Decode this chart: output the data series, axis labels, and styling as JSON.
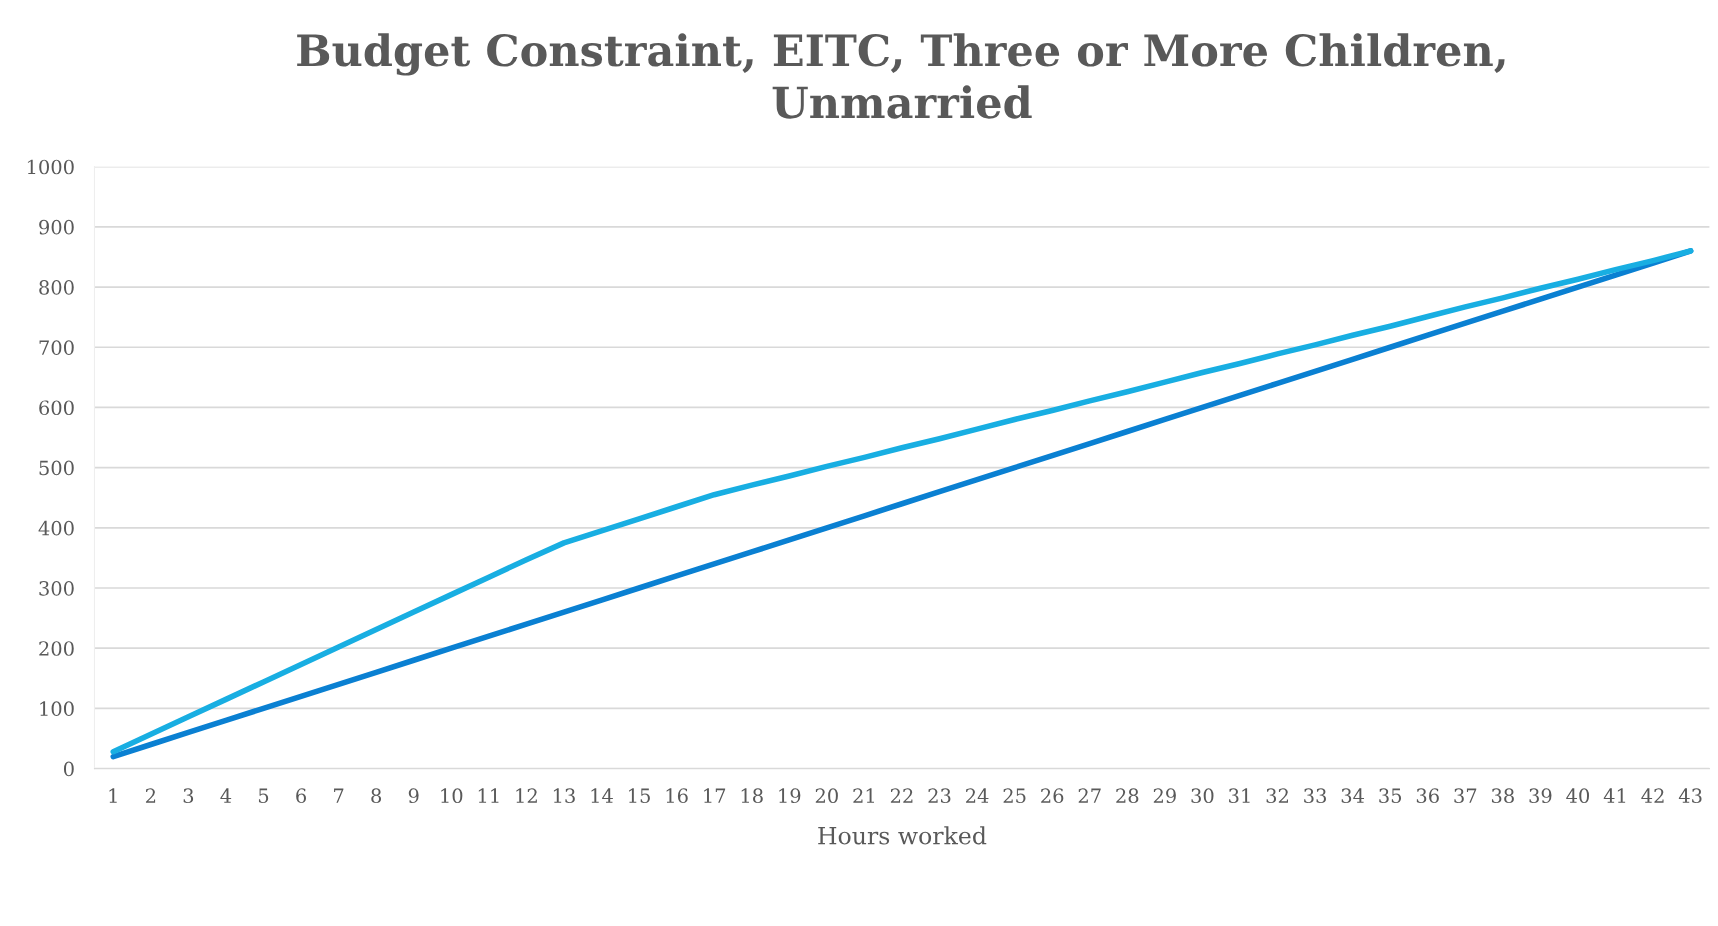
{
  "chart_data": {
    "type": "line",
    "title": "Budget Constraint, EITC, Three or More Children,\nUnmarried",
    "xlabel": "Hours worked",
    "categories": [
      "1",
      "2",
      "3",
      "4",
      "5",
      "6",
      "7",
      "8",
      "9",
      "10",
      "11",
      "12",
      "13",
      "14",
      "15",
      "16",
      "17",
      "18",
      "19",
      "20",
      "21",
      "22",
      "23",
      "24",
      "25",
      "26",
      "27",
      "28",
      "29",
      "30",
      "31",
      "32",
      "33",
      "34",
      "35",
      "36",
      "37",
      "38",
      "39",
      "40",
      "41",
      "42",
      "43"
    ],
    "series": [
      {
        "color": "#0a80d2",
        "values": [
          20,
          40,
          60,
          80,
          100,
          120,
          140,
          160,
          180,
          200,
          220,
          240,
          260,
          280,
          300,
          320,
          340,
          360,
          380,
          400,
          420,
          440,
          460,
          480,
          500,
          520,
          540,
          560,
          580,
          600,
          620,
          640,
          660,
          680,
          700,
          720,
          740,
          760,
          780,
          800,
          820,
          840,
          860
        ]
      },
      {
        "color": "#18aee2",
        "values": [
          28,
          57,
          86,
          115,
          144,
          173,
          202,
          231,
          260,
          289,
          318,
          347,
          375,
          395,
          415,
          435,
          455,
          471,
          486,
          502,
          517,
          533,
          548,
          564,
          580,
          595,
          611,
          626,
          642,
          658,
          673,
          689,
          704,
          720,
          735,
          751,
          767,
          782,
          798,
          813,
          829,
          844,
          860
        ]
      }
    ],
    "ylim": [
      0,
      1000
    ],
    "yticks": [
      0,
      100,
      200,
      300,
      400,
      500,
      600,
      700,
      800,
      900,
      1000
    ],
    "grid": "y",
    "marker": "none",
    "line_style": "solid"
  }
}
